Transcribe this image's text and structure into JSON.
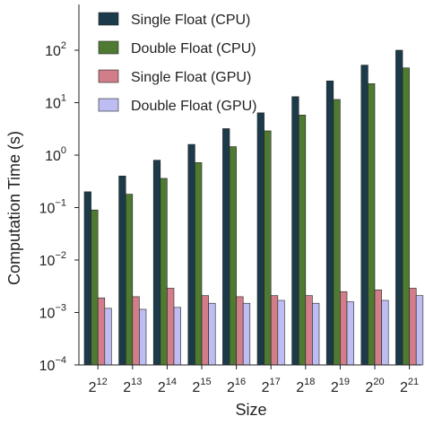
{
  "chart_data": {
    "type": "bar",
    "xlabel": "Size",
    "ylabel": "Computation Time (s)",
    "yscale": "log",
    "ylim": [
      0.0001,
      300
    ],
    "y_ticks": [
      {
        "value": 0.0001,
        "base": "10",
        "exp": "−4"
      },
      {
        "value": 0.001,
        "base": "10",
        "exp": "−3"
      },
      {
        "value": 0.01,
        "base": "10",
        "exp": "−2"
      },
      {
        "value": 0.1,
        "base": "10",
        "exp": "−1"
      },
      {
        "value": 1,
        "base": "10",
        "exp": "0"
      },
      {
        "value": 10,
        "base": "10",
        "exp": "1"
      },
      {
        "value": 100,
        "base": "10",
        "exp": "2"
      }
    ],
    "categories": [
      {
        "base": "2",
        "exp": "12"
      },
      {
        "base": "2",
        "exp": "13"
      },
      {
        "base": "2",
        "exp": "14"
      },
      {
        "base": "2",
        "exp": "15"
      },
      {
        "base": "2",
        "exp": "16"
      },
      {
        "base": "2",
        "exp": "17"
      },
      {
        "base": "2",
        "exp": "18"
      },
      {
        "base": "2",
        "exp": "19"
      },
      {
        "base": "2",
        "exp": "20"
      },
      {
        "base": "2",
        "exp": "21"
      }
    ],
    "series": [
      {
        "name": "Single Float (CPU)",
        "color": "#1c3b4a",
        "values": [
          0.2,
          0.4,
          0.8,
          1.6,
          3.2,
          6.4,
          13,
          26,
          52,
          100
        ]
      },
      {
        "name": "Double Float (CPU)",
        "color": "#4f7a32",
        "values": [
          0.09,
          0.18,
          0.36,
          0.72,
          1.45,
          2.9,
          5.8,
          11.5,
          23,
          46
        ]
      },
      {
        "name": "Single Float (GPU)",
        "color": "#d17d8a",
        "values": [
          0.0019,
          0.002,
          0.0029,
          0.0021,
          0.002,
          0.0021,
          0.0021,
          0.0025,
          0.0027,
          0.0029
        ]
      },
      {
        "name": "Double Float (GPU)",
        "color": "#bdbdf2",
        "values": [
          0.0012,
          0.00115,
          0.00125,
          0.0015,
          0.0015,
          0.0017,
          0.0015,
          0.0016,
          0.0017,
          0.0021
        ]
      }
    ],
    "legend_position": "top-left",
    "grid": false
  }
}
